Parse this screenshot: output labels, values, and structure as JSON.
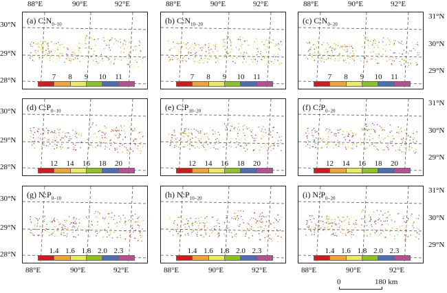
{
  "axes": {
    "lon_labels": [
      "88°E",
      "90°E",
      "92°E"
    ],
    "lat_labels_left": [
      "30°N",
      "29°N",
      "28°N"
    ],
    "lat_labels_right": [
      "31°N",
      "30°N",
      "29°N"
    ]
  },
  "panels": [
    {
      "letter": "(a)",
      "ratio": "C:N",
      "depth": "0−10",
      "legend_set": "cn"
    },
    {
      "letter": "(b)",
      "ratio": "C:N",
      "depth": "10−20",
      "legend_set": "cn"
    },
    {
      "letter": "(c)",
      "ratio": "C:N",
      "depth": "0−20",
      "legend_set": "cn"
    },
    {
      "letter": "(d)",
      "ratio": "C:P",
      "depth": "0−10",
      "legend_set": "cp"
    },
    {
      "letter": "(e)",
      "ratio": "C:P",
      "depth": "10−20",
      "legend_set": "cp"
    },
    {
      "letter": "(f)",
      "ratio": "C:P",
      "depth": "0−20",
      "legend_set": "cp"
    },
    {
      "letter": "(g)",
      "ratio": "N:P",
      "depth": "0−10",
      "legend_set": "np"
    },
    {
      "letter": "(h)",
      "ratio": "N:P",
      "depth": "10−20",
      "legend_set": "np"
    },
    {
      "letter": "(i)",
      "ratio": "N:P",
      "depth": "0−20",
      "legend_set": "np"
    }
  ],
  "legends": {
    "cn": [
      "7",
      "8",
      "9",
      "10",
      "11"
    ],
    "cp": [
      "12",
      "14",
      "16",
      "18",
      "20"
    ],
    "np": [
      "1.4",
      "1.6",
      "1.8",
      "2.0",
      "2.3"
    ]
  },
  "colors": [
    "#d7191c",
    "#f5a235",
    "#ebeb5e",
    "#8dc21f",
    "#4a6fb5",
    "#bb4d92"
  ],
  "scale_bar": {
    "start": "0",
    "end": "180 km"
  }
}
